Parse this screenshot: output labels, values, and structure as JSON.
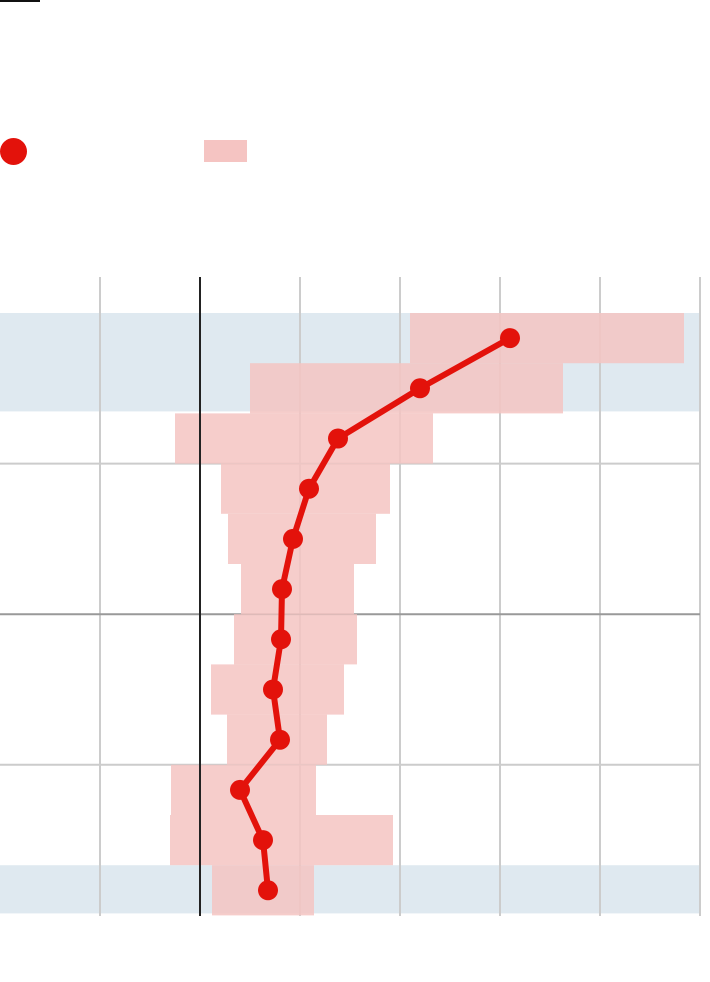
{
  "colors": {
    "line": "#e3120b",
    "band": "#f5c4c2",
    "highlight": "#dfe9f0",
    "grid": "#cccccc",
    "zero_line": "#222222",
    "rule": "#999999"
  },
  "legend": [
    {
      "icon": "dot",
      "label": ""
    },
    {
      "icon": "band",
      "label": ""
    }
  ],
  "chart_data": {
    "type": "line",
    "orientation": "horizontal",
    "title": "",
    "xlabel": "",
    "ylabel": "",
    "grid": true,
    "xlim": [
      -2,
      5
    ],
    "x_gridlines": [
      -1,
      0,
      1,
      2,
      3,
      4,
      5
    ],
    "rows": 12,
    "categories": [
      "",
      "",
      "",
      "",
      "",
      "",
      "",
      "",
      "",
      "",
      "",
      ""
    ],
    "series": [
      {
        "kind": "point",
        "values": [
          3.1,
          2.2,
          1.38,
          1.09,
          0.93,
          0.82,
          0.81,
          0.73,
          0.8,
          0.4,
          0.63,
          0.68
        ]
      },
      {
        "kind": "range",
        "low": [
          2.1,
          0.5,
          -0.25,
          0.21,
          0.28,
          0.41,
          0.34,
          0.11,
          0.27,
          -0.29,
          -0.3,
          0.12
        ],
        "high": [
          4.84,
          3.63,
          2.33,
          1.9,
          1.76,
          1.54,
          1.57,
          1.44,
          1.27,
          1.16,
          1.93,
          1.14
        ]
      }
    ],
    "highlighted_rows": [
      [
        0,
        1
      ],
      [
        11,
        11
      ]
    ],
    "separator_rows": [
      3,
      6,
      9
    ]
  }
}
